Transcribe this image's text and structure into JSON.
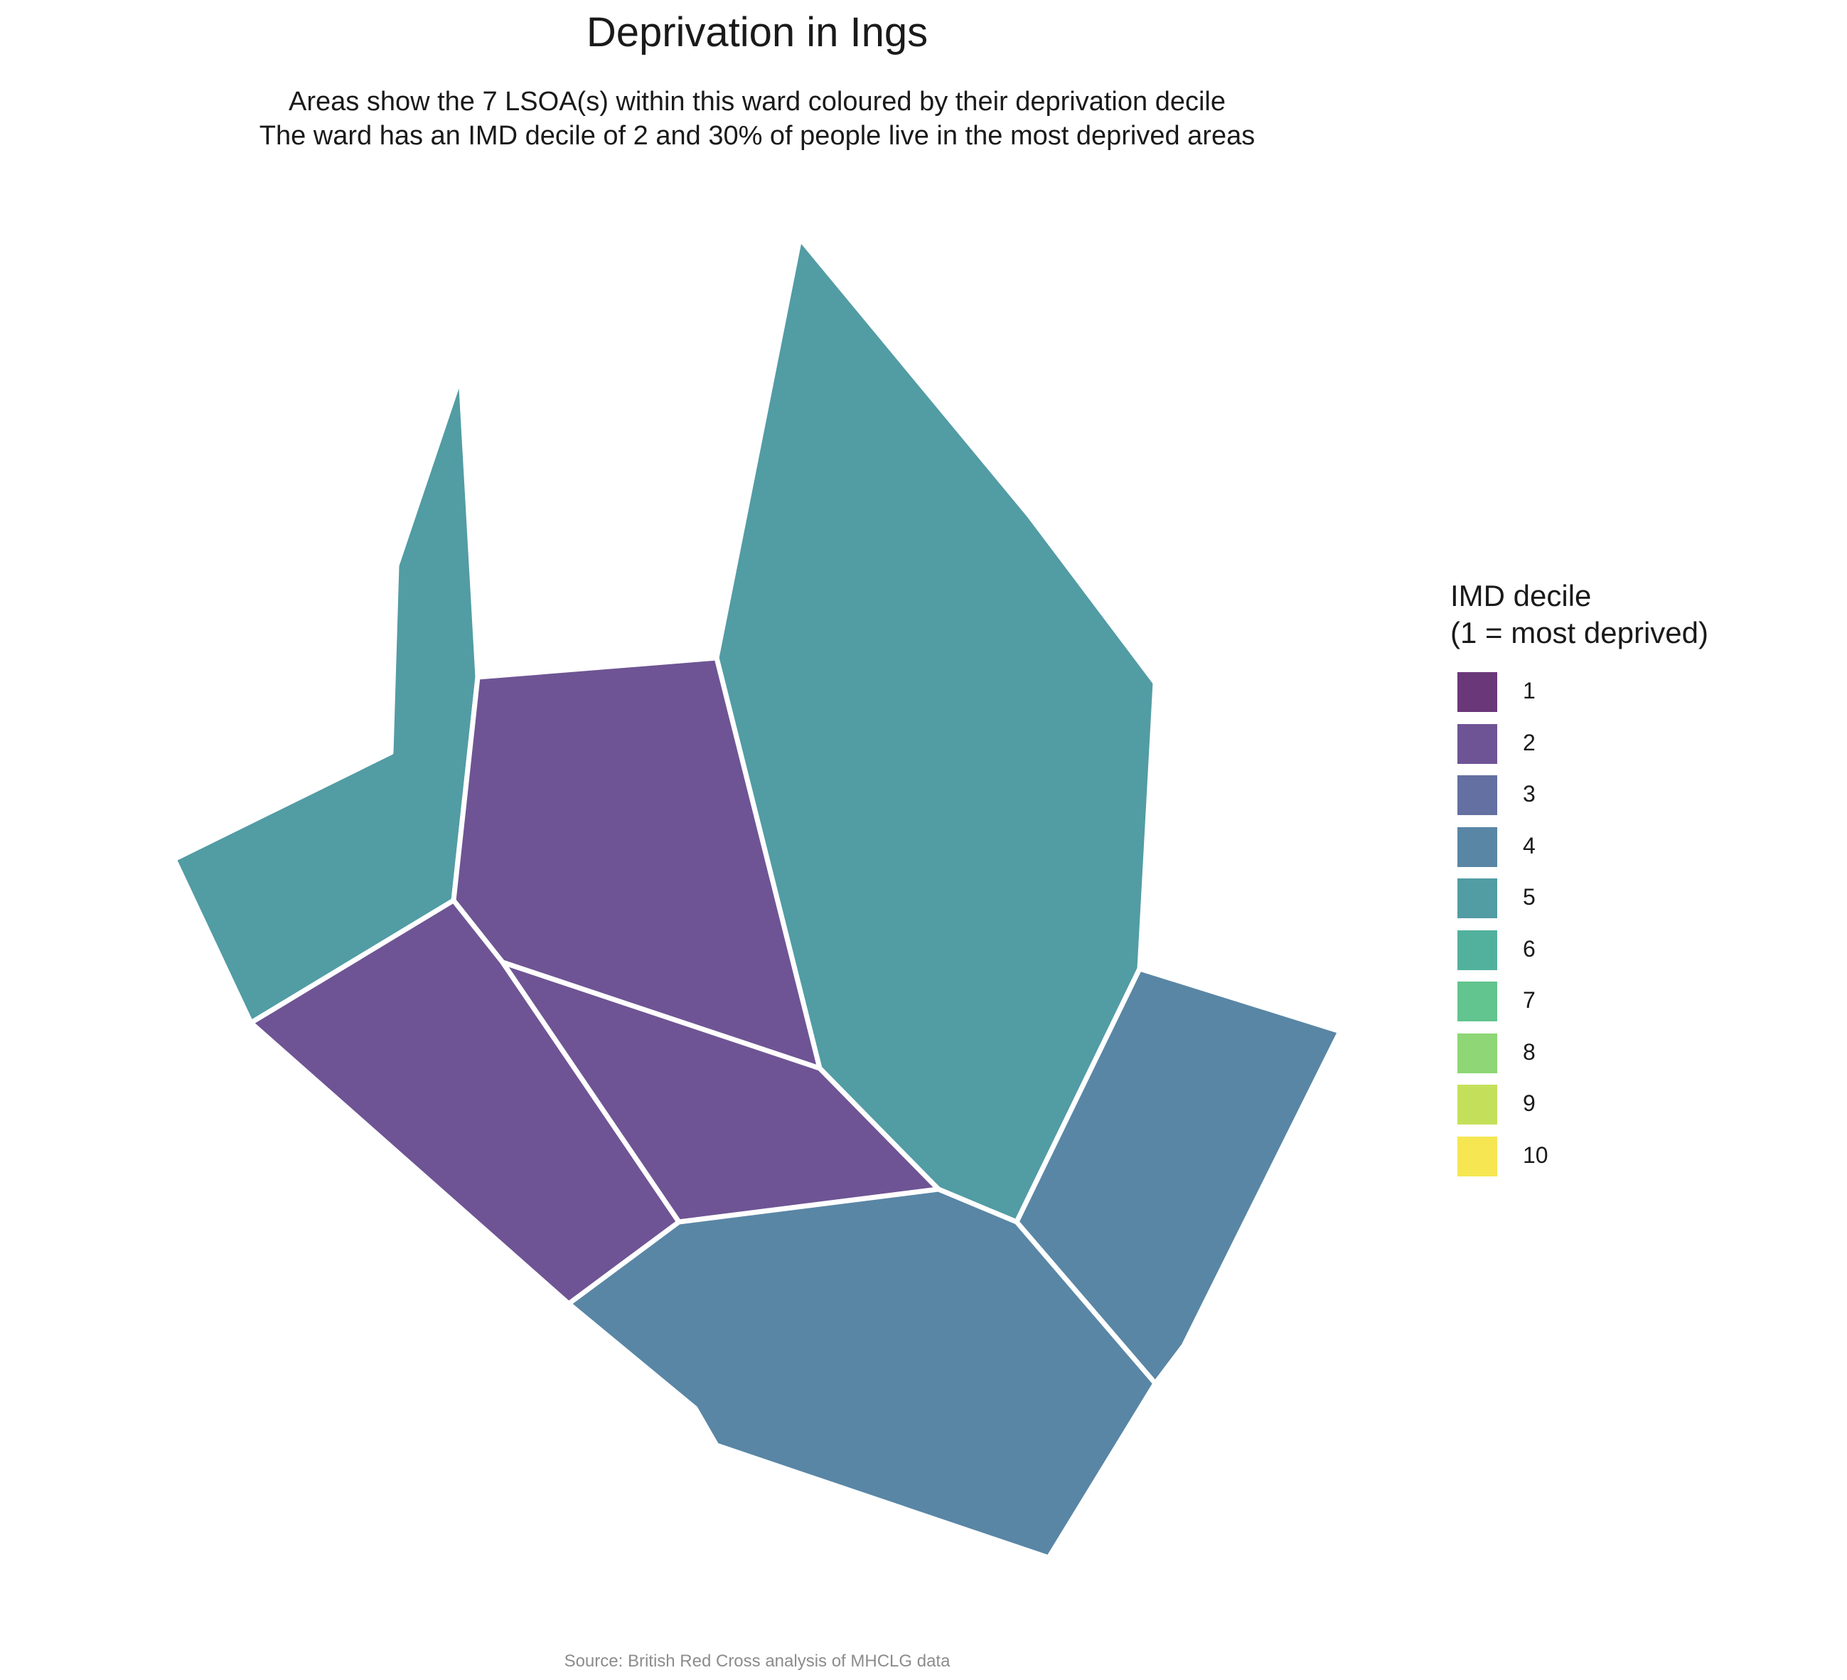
{
  "title": "Deprivation in Ings",
  "subtitle_line1": "Areas show the 7 LSOA(s) within this ward coloured by their deprivation decile",
  "subtitle_line2": "The ward has an IMD decile of 2 and 30% of people live in the most deprived areas",
  "caption": "Source: British Red Cross analysis of MHCLG data",
  "legend": {
    "title": "IMD decile\n(1 = most deprived)",
    "items": [
      {
        "label": "1",
        "color": "#6a3779"
      },
      {
        "label": "2",
        "color": "#6e5494"
      },
      {
        "label": "3",
        "color": "#6470a1"
      },
      {
        "label": "4",
        "color": "#5986a5"
      },
      {
        "label": "5",
        "color": "#529ca4"
      },
      {
        "label": "6",
        "color": "#52b19d"
      },
      {
        "label": "7",
        "color": "#62c48e"
      },
      {
        "label": "8",
        "color": "#8ed676"
      },
      {
        "label": "9",
        "color": "#c4e05a"
      },
      {
        "label": "10",
        "color": "#f5e652"
      }
    ]
  },
  "lsoas": [
    {
      "id": "lsoa-north-west",
      "decile": 5
    },
    {
      "id": "lsoa-north-east",
      "decile": 5
    },
    {
      "id": "lsoa-central-north",
      "decile": 2
    },
    {
      "id": "lsoa-south-west",
      "decile": 2
    },
    {
      "id": "lsoa-central",
      "decile": 2
    },
    {
      "id": "lsoa-east",
      "decile": 4
    },
    {
      "id": "lsoa-south",
      "decile": 4
    }
  ]
}
